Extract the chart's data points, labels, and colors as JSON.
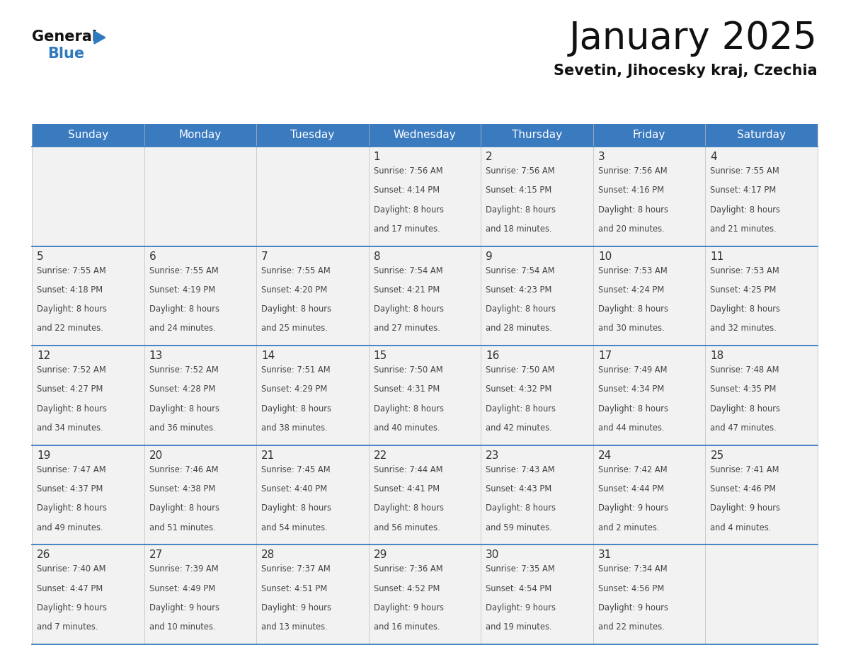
{
  "title": "January 2025",
  "subtitle": "Sevetin, Jihocesky kraj, Czechia",
  "days_of_week": [
    "Sunday",
    "Monday",
    "Tuesday",
    "Wednesday",
    "Thursday",
    "Friday",
    "Saturday"
  ],
  "header_bg": "#3a7abf",
  "header_text": "#ffffff",
  "cell_bg": "#f2f2f2",
  "day_number_color": "#333333",
  "text_color": "#444444",
  "line_color": "#3a7abf",
  "title_color": "#111111",
  "subtitle_color": "#111111",
  "logo_general_color": "#111111",
  "logo_blue_color": "#2e7abf",
  "calendar_data": [
    [
      {
        "day": null,
        "sunrise": null,
        "sunset": null,
        "daylight": null
      },
      {
        "day": null,
        "sunrise": null,
        "sunset": null,
        "daylight": null
      },
      {
        "day": null,
        "sunrise": null,
        "sunset": null,
        "daylight": null
      },
      {
        "day": 1,
        "sunrise": "7:56 AM",
        "sunset": "4:14 PM",
        "daylight": "8 hours and 17 minutes."
      },
      {
        "day": 2,
        "sunrise": "7:56 AM",
        "sunset": "4:15 PM",
        "daylight": "8 hours and 18 minutes."
      },
      {
        "day": 3,
        "sunrise": "7:56 AM",
        "sunset": "4:16 PM",
        "daylight": "8 hours and 20 minutes."
      },
      {
        "day": 4,
        "sunrise": "7:55 AM",
        "sunset": "4:17 PM",
        "daylight": "8 hours and 21 minutes."
      }
    ],
    [
      {
        "day": 5,
        "sunrise": "7:55 AM",
        "sunset": "4:18 PM",
        "daylight": "8 hours and 22 minutes."
      },
      {
        "day": 6,
        "sunrise": "7:55 AM",
        "sunset": "4:19 PM",
        "daylight": "8 hours and 24 minutes."
      },
      {
        "day": 7,
        "sunrise": "7:55 AM",
        "sunset": "4:20 PM",
        "daylight": "8 hours and 25 minutes."
      },
      {
        "day": 8,
        "sunrise": "7:54 AM",
        "sunset": "4:21 PM",
        "daylight": "8 hours and 27 minutes."
      },
      {
        "day": 9,
        "sunrise": "7:54 AM",
        "sunset": "4:23 PM",
        "daylight": "8 hours and 28 minutes."
      },
      {
        "day": 10,
        "sunrise": "7:53 AM",
        "sunset": "4:24 PM",
        "daylight": "8 hours and 30 minutes."
      },
      {
        "day": 11,
        "sunrise": "7:53 AM",
        "sunset": "4:25 PM",
        "daylight": "8 hours and 32 minutes."
      }
    ],
    [
      {
        "day": 12,
        "sunrise": "7:52 AM",
        "sunset": "4:27 PM",
        "daylight": "8 hours and 34 minutes."
      },
      {
        "day": 13,
        "sunrise": "7:52 AM",
        "sunset": "4:28 PM",
        "daylight": "8 hours and 36 minutes."
      },
      {
        "day": 14,
        "sunrise": "7:51 AM",
        "sunset": "4:29 PM",
        "daylight": "8 hours and 38 minutes."
      },
      {
        "day": 15,
        "sunrise": "7:50 AM",
        "sunset": "4:31 PM",
        "daylight": "8 hours and 40 minutes."
      },
      {
        "day": 16,
        "sunrise": "7:50 AM",
        "sunset": "4:32 PM",
        "daylight": "8 hours and 42 minutes."
      },
      {
        "day": 17,
        "sunrise": "7:49 AM",
        "sunset": "4:34 PM",
        "daylight": "8 hours and 44 minutes."
      },
      {
        "day": 18,
        "sunrise": "7:48 AM",
        "sunset": "4:35 PM",
        "daylight": "8 hours and 47 minutes."
      }
    ],
    [
      {
        "day": 19,
        "sunrise": "7:47 AM",
        "sunset": "4:37 PM",
        "daylight": "8 hours and 49 minutes."
      },
      {
        "day": 20,
        "sunrise": "7:46 AM",
        "sunset": "4:38 PM",
        "daylight": "8 hours and 51 minutes."
      },
      {
        "day": 21,
        "sunrise": "7:45 AM",
        "sunset": "4:40 PM",
        "daylight": "8 hours and 54 minutes."
      },
      {
        "day": 22,
        "sunrise": "7:44 AM",
        "sunset": "4:41 PM",
        "daylight": "8 hours and 56 minutes."
      },
      {
        "day": 23,
        "sunrise": "7:43 AM",
        "sunset": "4:43 PM",
        "daylight": "8 hours and 59 minutes."
      },
      {
        "day": 24,
        "sunrise": "7:42 AM",
        "sunset": "4:44 PM",
        "daylight": "9 hours and 2 minutes."
      },
      {
        "day": 25,
        "sunrise": "7:41 AM",
        "sunset": "4:46 PM",
        "daylight": "9 hours and 4 minutes."
      }
    ],
    [
      {
        "day": 26,
        "sunrise": "7:40 AM",
        "sunset": "4:47 PM",
        "daylight": "9 hours and 7 minutes."
      },
      {
        "day": 27,
        "sunrise": "7:39 AM",
        "sunset": "4:49 PM",
        "daylight": "9 hours and 10 minutes."
      },
      {
        "day": 28,
        "sunrise": "7:37 AM",
        "sunset": "4:51 PM",
        "daylight": "9 hours and 13 minutes."
      },
      {
        "day": 29,
        "sunrise": "7:36 AM",
        "sunset": "4:52 PM",
        "daylight": "9 hours and 16 minutes."
      },
      {
        "day": 30,
        "sunrise": "7:35 AM",
        "sunset": "4:54 PM",
        "daylight": "9 hours and 19 minutes."
      },
      {
        "day": 31,
        "sunrise": "7:34 AM",
        "sunset": "4:56 PM",
        "daylight": "9 hours and 22 minutes."
      },
      {
        "day": null,
        "sunrise": null,
        "sunset": null,
        "daylight": null
      }
    ]
  ]
}
